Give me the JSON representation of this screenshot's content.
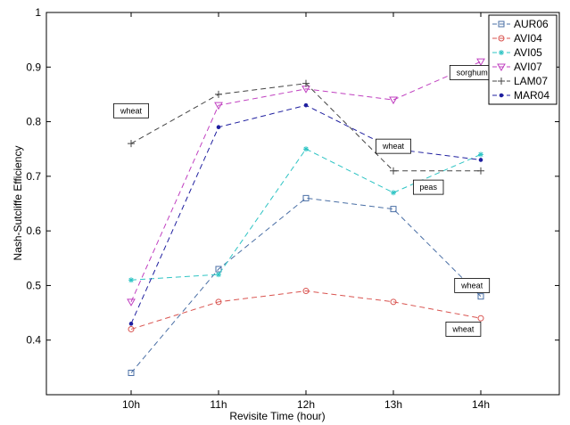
{
  "chart_data": {
    "type": "line",
    "xlabel": "Revisite Time (hour)",
    "ylabel": "Nash-Sutcliffe Efficiency",
    "categories": [
      "10h",
      "11h",
      "12h",
      "13h",
      "14h"
    ],
    "ylim": [
      0.3,
      1.0
    ],
    "yticks": [
      "0.4",
      "0.5",
      "0.6",
      "0.7",
      "0.8",
      "0.9",
      "1"
    ],
    "grid": false,
    "legend_position": "top-right",
    "series": [
      {
        "name": "AUR06",
        "color": "#4a6fa5",
        "marker": "square",
        "values": [
          0.34,
          0.53,
          0.66,
          0.64,
          0.48
        ]
      },
      {
        "name": "AVI04",
        "color": "#d9534f",
        "marker": "circle",
        "values": [
          0.42,
          0.47,
          0.49,
          0.47,
          0.44
        ]
      },
      {
        "name": "AVI05",
        "color": "#2ec4c4",
        "marker": "star",
        "values": [
          0.51,
          0.52,
          0.75,
          0.67,
          0.74
        ]
      },
      {
        "name": "AVI07",
        "color": "#c040c0",
        "marker": "triangle-down",
        "values": [
          0.47,
          0.83,
          0.86,
          0.84,
          0.91
        ]
      },
      {
        "name": "LAM07",
        "color": "#444444",
        "marker": "plus",
        "values": [
          0.76,
          0.85,
          0.87,
          0.71,
          0.71
        ]
      },
      {
        "name": "MAR04",
        "color": "#1f1f9f",
        "marker": "dot",
        "values": [
          0.43,
          0.79,
          0.83,
          0.75,
          0.73
        ]
      }
    ],
    "annotations": [
      {
        "text": "wheat",
        "x": "10h",
        "y": 0.82
      },
      {
        "text": "sorghum",
        "x": "13.9h",
        "y": 0.89
      },
      {
        "text": "wheat",
        "x": "13h",
        "y": 0.755
      },
      {
        "text": "peas",
        "x": "13.4h",
        "y": 0.68
      },
      {
        "text": "wheat",
        "x": "13.9h",
        "y": 0.5
      },
      {
        "text": "wheat",
        "x": "13.8h",
        "y": 0.42
      }
    ]
  }
}
